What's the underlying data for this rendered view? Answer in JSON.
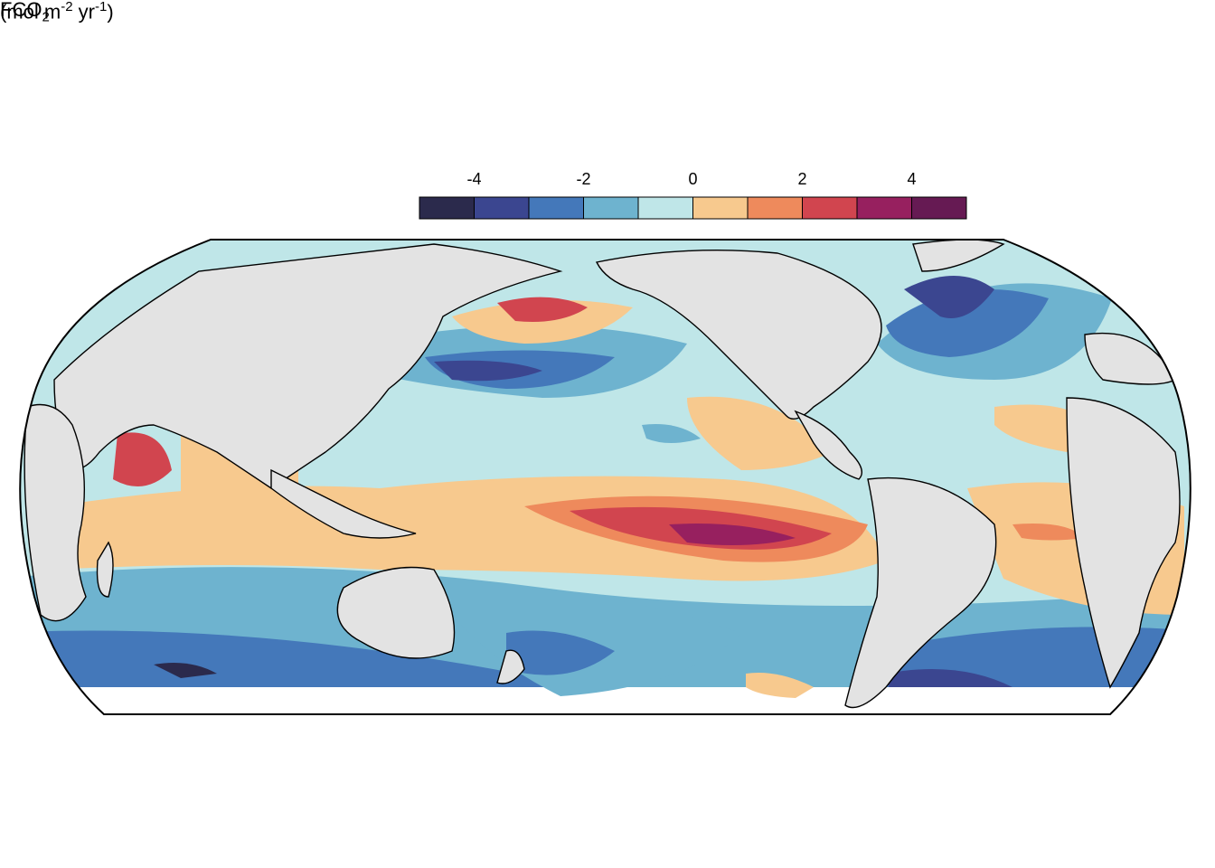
{
  "legend": {
    "title_main": "FCO",
    "title_sub": "2",
    "unit_prefix": "(mol m",
    "unit_exp1": "-2",
    "unit_mid": " yr",
    "unit_exp2": "-1",
    "unit_suffix": ")",
    "ticks": [
      "-4",
      "-2",
      "0",
      "2",
      "4"
    ],
    "bins": [
      {
        "color": "#2b2a4c"
      },
      {
        "color": "#3b4690"
      },
      {
        "color": "#4478ba"
      },
      {
        "color": "#6eb3cf"
      },
      {
        "color": "#bfe6e8"
      },
      {
        "color": "#f7c98e"
      },
      {
        "color": "#ee8a5c"
      },
      {
        "color": "#d1454f"
      },
      {
        "color": "#97205f"
      },
      {
        "color": "#661a53"
      }
    ]
  },
  "map": {
    "projection": "Robinson-like, Pacific-centred",
    "land_color": "#e3e3e3",
    "coast_color": "#000000"
  }
}
